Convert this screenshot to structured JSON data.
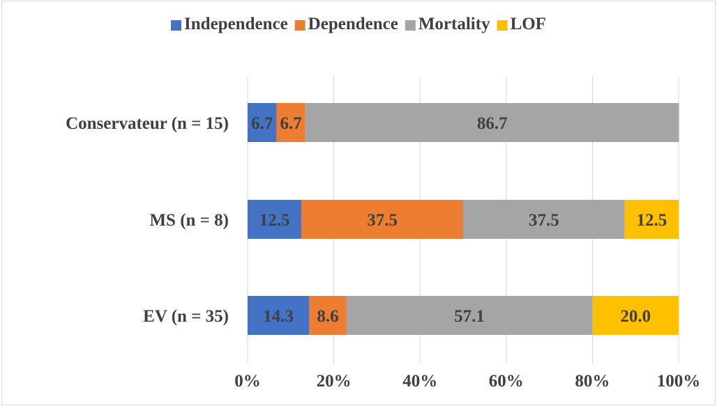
{
  "chart_data": {
    "type": "bar",
    "orientation": "horizontal",
    "stacked": "percent",
    "categories": [
      "Conservateur (n = 15)",
      "MS (n = 8)",
      "EV (n = 35)"
    ],
    "series": [
      {
        "name": "Independence",
        "color": "#4472C4",
        "values": [
          6.7,
          12.5,
          14.3
        ],
        "labels": [
          "6.7",
          "12.5",
          "14.3"
        ]
      },
      {
        "name": "Dependence",
        "color": "#ED7D31",
        "values": [
          6.7,
          37.5,
          8.6
        ],
        "labels": [
          "6.7",
          "37.5",
          "8.6"
        ]
      },
      {
        "name": "Mortality",
        "color": "#A5A5A5",
        "values": [
          86.7,
          37.5,
          57.1
        ],
        "labels": [
          "86.7",
          "37.5",
          "57.1"
        ]
      },
      {
        "name": "LOF",
        "color": "#FFC000",
        "values": [
          0,
          12.5,
          20.0
        ],
        "labels": [
          "",
          "12.5",
          "20.0"
        ]
      }
    ],
    "xlim": [
      0,
      100
    ],
    "xticks": [
      "0%",
      "20%",
      "40%",
      "60%",
      "80%",
      "100%"
    ],
    "grid": true,
    "legend_position": "top"
  }
}
